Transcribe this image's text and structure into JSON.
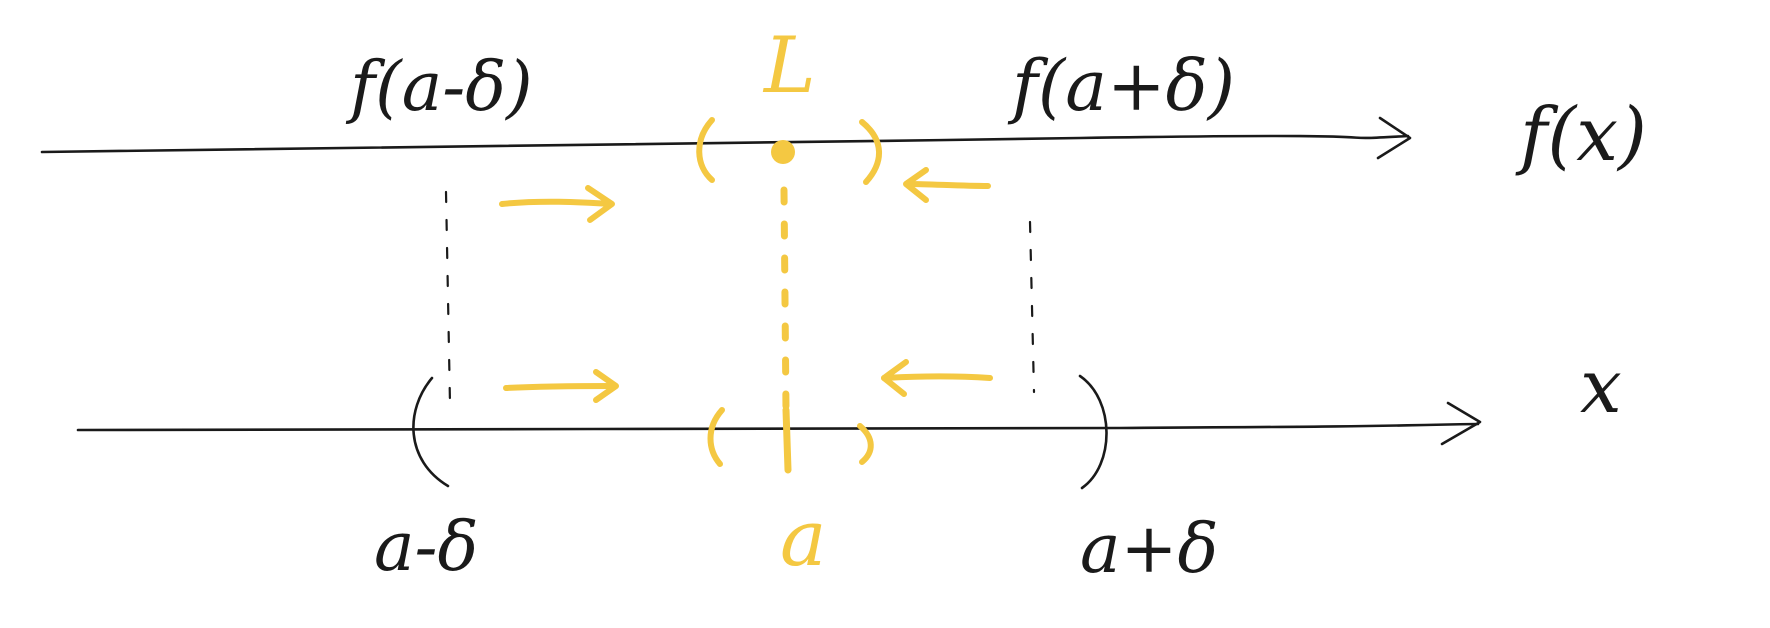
{
  "labels": {
    "f_a_minus_delta": "f(a-δ)",
    "L": "L",
    "f_a_plus_delta": "f(a+δ)",
    "f_x_axis": "f(x)",
    "x_axis": "x",
    "a_minus_delta": "a-δ",
    "a": "a",
    "a_plus_delta": "a+δ"
  },
  "colors": {
    "ink": "#1a1a1a",
    "highlight": "#F4C842"
  }
}
